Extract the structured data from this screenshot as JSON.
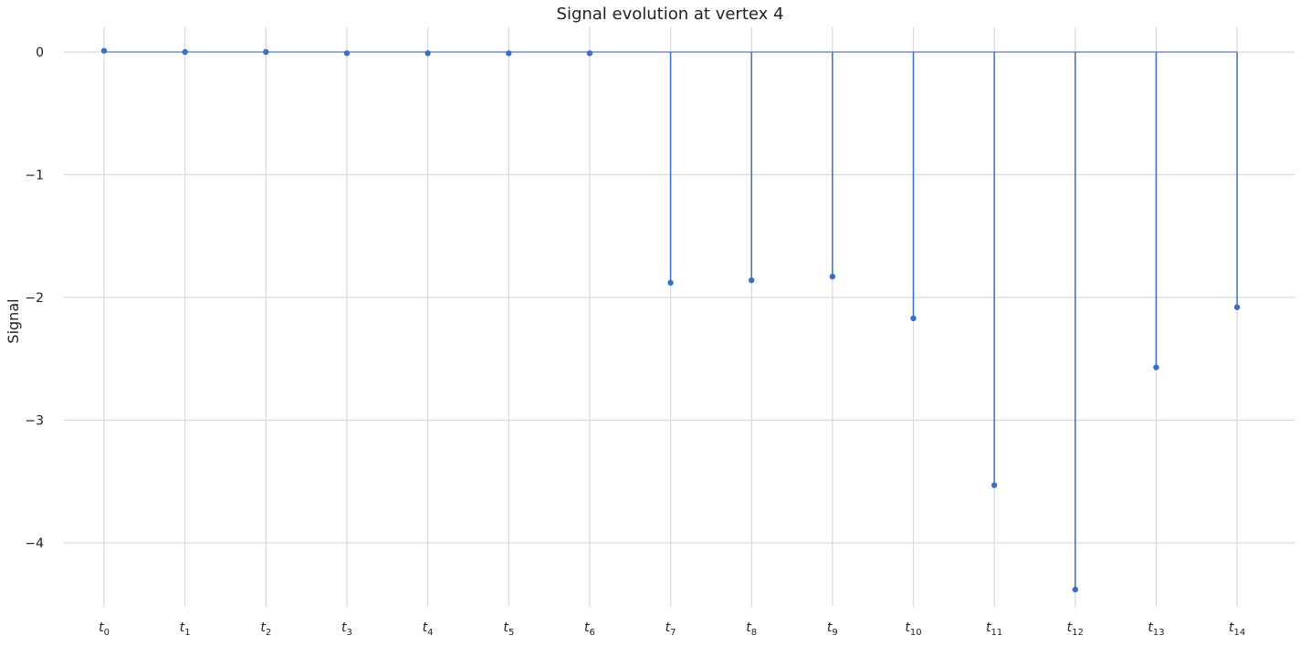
{
  "chart_data": {
    "type": "stem",
    "title": "Signal evolution at vertex 4",
    "xlabel": "",
    "ylabel": "Signal",
    "categories": [
      {
        "base": "t",
        "sub": "0"
      },
      {
        "base": "t",
        "sub": "1"
      },
      {
        "base": "t",
        "sub": "2"
      },
      {
        "base": "t",
        "sub": "3"
      },
      {
        "base": "t",
        "sub": "4"
      },
      {
        "base": "t",
        "sub": "5"
      },
      {
        "base": "t",
        "sub": "6"
      },
      {
        "base": "t",
        "sub": "7"
      },
      {
        "base": "t",
        "sub": "8"
      },
      {
        "base": "t",
        "sub": "9"
      },
      {
        "base": "t",
        "sub": "10"
      },
      {
        "base": "t",
        "sub": "11"
      },
      {
        "base": "t",
        "sub": "12"
      },
      {
        "base": "t",
        "sub": "13"
      },
      {
        "base": "t",
        "sub": "14"
      }
    ],
    "values": [
      0.01,
      0.0,
      0.0,
      -0.01,
      -0.01,
      -0.01,
      -0.01,
      -1.88,
      -1.86,
      -1.83,
      -2.17,
      -3.53,
      -4.38,
      -2.57,
      -2.08
    ],
    "baseline": 0,
    "yticks": [
      0,
      -1,
      -2,
      -3,
      -4
    ],
    "ytick_labels": [
      "0",
      "−1",
      "−2",
      "−3",
      "−4"
    ],
    "ylim": [
      -4.55,
      0.25
    ],
    "grid": true,
    "colors": {
      "stem": "#3a6fc4",
      "baseline": "#7a8fcf",
      "grid": "#d9d9d9"
    }
  }
}
